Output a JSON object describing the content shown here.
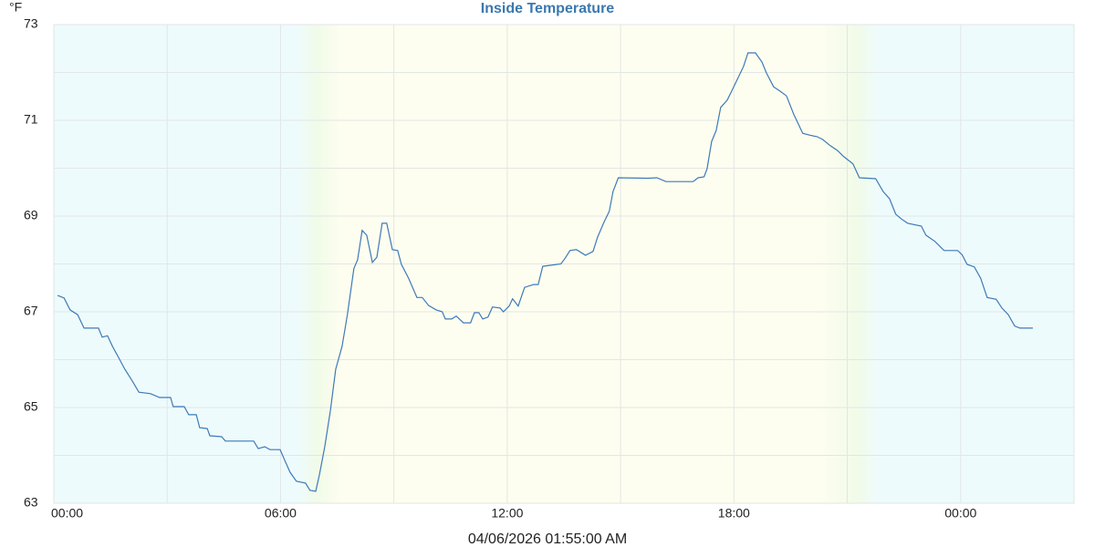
{
  "chart_data": {
    "type": "line",
    "title": "Inside Temperature",
    "y_unit": "°F",
    "x_label": "04/06/2026 01:55:00 AM",
    "xlim": [
      0,
      27
    ],
    "xticks": [
      {
        "value": 0,
        "label": "00:00"
      },
      {
        "value": 6,
        "label": "06:00"
      },
      {
        "value": 12,
        "label": "12:00"
      },
      {
        "value": 18,
        "label": "18:00"
      },
      {
        "value": 24,
        "label": "00:00"
      }
    ],
    "x_minor_ticks": [
      3,
      9,
      15,
      21
    ],
    "ylim": [
      63,
      73
    ],
    "yticks": [
      63,
      65,
      67,
      69,
      71,
      73
    ],
    "y_minor_ticks": [
      64,
      66,
      68,
      70,
      72
    ],
    "grid": true,
    "day_band": [
      7.25,
      21
    ],
    "series": [
      {
        "name": "Inside Temperature",
        "color": "#3d7ab8",
        "x": [
          0.1,
          0.27,
          0.43,
          0.63,
          0.8,
          1.18,
          1.28,
          1.42,
          1.55,
          1.71,
          1.88,
          2.08,
          2.25,
          2.56,
          2.8,
          3.09,
          3.16,
          3.45,
          3.57,
          3.77,
          3.86,
          4.06,
          4.13,
          4.44,
          4.54,
          5.29,
          5.41,
          5.58,
          5.72,
          5.99,
          6.11,
          6.25,
          6.42,
          6.66,
          6.78,
          6.93,
          7.03,
          7.17,
          7.32,
          7.46,
          7.63,
          7.77,
          7.94,
          8.04,
          8.16,
          8.28,
          8.43,
          8.55,
          8.69,
          8.81,
          8.96,
          9.1,
          9.2,
          9.39,
          9.61,
          9.75,
          9.92,
          10.12,
          10.28,
          10.36,
          10.53,
          10.65,
          10.84,
          11.03,
          11.13,
          11.25,
          11.35,
          11.49,
          11.61,
          11.81,
          11.9,
          12.05,
          12.14,
          12.29,
          12.46,
          12.7,
          12.82,
          12.94,
          13.42,
          13.54,
          13.66,
          13.83,
          14.07,
          14.27,
          14.39,
          14.56,
          14.7,
          14.8,
          14.94,
          15.72,
          15.96,
          16.2,
          16.92,
          17.05,
          17.21,
          17.29,
          17.41,
          17.53,
          17.65,
          17.82,
          17.94,
          18.08,
          18.25,
          18.37,
          18.57,
          18.74,
          18.86,
          19.05,
          19.22,
          19.39,
          19.58,
          19.82,
          20.01,
          20.2,
          20.35,
          20.55,
          20.74,
          20.91,
          21.15,
          21.32,
          21.75,
          21.95,
          22.12,
          22.28,
          22.43,
          22.6,
          22.96,
          23.08,
          23.32,
          23.56,
          23.92,
          24.04,
          24.17,
          24.36,
          24.53,
          24.7,
          24.94,
          25.09,
          25.26,
          25.43,
          25.57,
          25.91
        ],
        "values": [
          67.34,
          67.29,
          67.04,
          66.94,
          66.66,
          66.66,
          66.47,
          66.5,
          66.28,
          66.05,
          65.8,
          65.55,
          65.32,
          65.29,
          65.21,
          65.21,
          65.02,
          65.02,
          64.85,
          64.85,
          64.58,
          64.56,
          64.41,
          64.39,
          64.3,
          64.3,
          64.14,
          64.18,
          64.12,
          64.12,
          63.9,
          63.65,
          63.46,
          63.42,
          63.27,
          63.25,
          63.6,
          64.18,
          64.94,
          65.8,
          66.28,
          66.94,
          67.9,
          68.09,
          68.7,
          68.6,
          68.03,
          68.14,
          68.85,
          68.85,
          68.3,
          68.28,
          67.99,
          67.7,
          67.3,
          67.3,
          67.13,
          67.04,
          67.0,
          66.85,
          66.85,
          66.91,
          66.77,
          66.77,
          66.98,
          66.98,
          66.85,
          66.89,
          67.1,
          67.08,
          67.0,
          67.12,
          67.27,
          67.12,
          67.51,
          67.57,
          67.57,
          67.95,
          68.0,
          68.13,
          68.28,
          68.3,
          68.18,
          68.26,
          68.56,
          68.87,
          69.1,
          69.51,
          69.8,
          69.79,
          69.8,
          69.72,
          69.72,
          69.8,
          69.82,
          69.99,
          70.56,
          70.79,
          71.27,
          71.42,
          71.61,
          71.84,
          72.12,
          72.41,
          72.41,
          72.22,
          71.99,
          71.7,
          71.61,
          71.51,
          71.13,
          70.73,
          70.69,
          70.66,
          70.6,
          70.47,
          70.37,
          70.24,
          70.09,
          69.8,
          69.78,
          69.51,
          69.36,
          69.04,
          68.94,
          68.85,
          68.79,
          68.6,
          68.47,
          68.28,
          68.28,
          68.19,
          67.99,
          67.94,
          67.7,
          67.3,
          67.26,
          67.08,
          66.94,
          66.7,
          66.66,
          66.66
        ]
      }
    ]
  }
}
